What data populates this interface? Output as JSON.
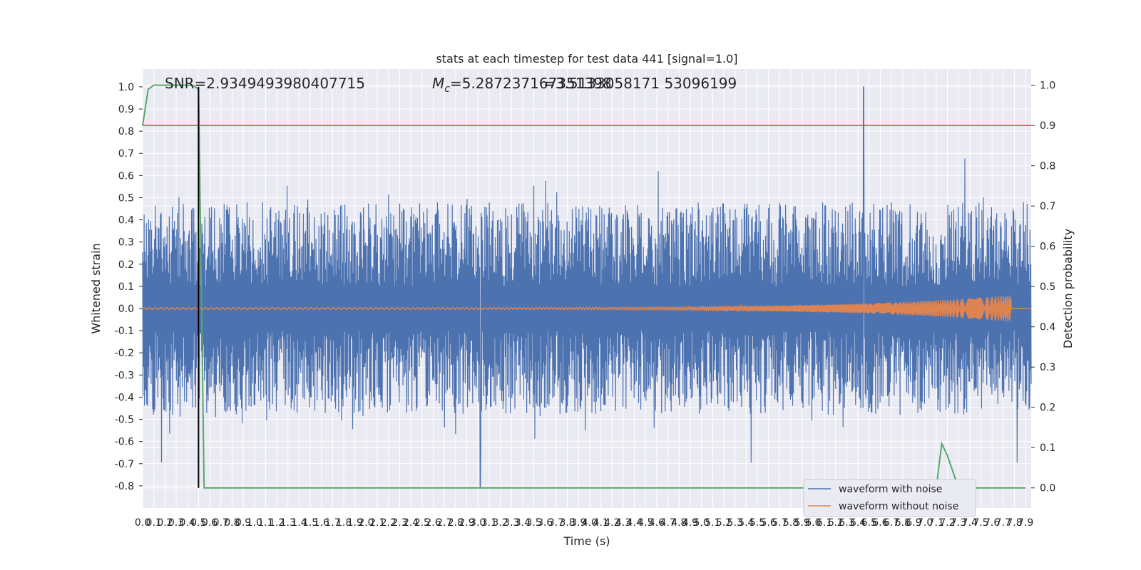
{
  "chart_data": {
    "type": "line",
    "title": "stats at each timestep for test data 441 [signal=1.0]",
    "xlabel": "Time (s)",
    "ylabel": "Whitened strain",
    "ylabel_right": "Detection probability",
    "xlim": [
      0.0,
      7.95
    ],
    "ylim": [
      -0.9,
      1.08
    ],
    "ylim_right": [
      -0.05,
      1.04
    ],
    "x_ticks": [
      "0.0",
      "0.1",
      "0.2",
      "0.3",
      "0.4",
      "0.5",
      "0.6",
      "0.7",
      "0.8",
      "0.9",
      "1.0",
      "1.1",
      "1.2",
      "1.3",
      "1.4",
      "1.5",
      "1.6",
      "1.7",
      "1.8",
      "1.9",
      "2.0",
      "2.1",
      "2.2",
      "2.3",
      "2.4",
      "2.5",
      "2.6",
      "2.7",
      "2.8",
      "2.9",
      "3.0",
      "3.1",
      "3.2",
      "3.3",
      "3.4",
      "3.5",
      "3.6",
      "3.7",
      "3.8",
      "3.9",
      "4.0",
      "4.1",
      "4.2",
      "4.3",
      "4.4",
      "4.5",
      "4.6",
      "4.7",
      "4.8",
      "4.9",
      "5.0",
      "5.1",
      "5.2",
      "5.3",
      "5.4",
      "5.5",
      "5.6",
      "5.7",
      "5.8",
      "5.9",
      "6.0",
      "6.1",
      "6.2",
      "6.3",
      "6.4",
      "6.5",
      "6.6",
      "6.7",
      "6.8",
      "6.9",
      "7.0",
      "7.1",
      "7.2",
      "7.3",
      "7.4",
      "7.5",
      "7.6",
      "7.7",
      "7.8",
      "7.9"
    ],
    "y_ticks": [
      "1.0",
      "0.9",
      "0.8",
      "0.7",
      "0.6",
      "0.5",
      "0.4",
      "0.3",
      "0.2",
      "0.1",
      "0.0",
      "-0.1",
      "-0.2",
      "-0.3",
      "-0.4",
      "-0.5",
      "-0.6",
      "-0.7",
      "-0.8"
    ],
    "y_ticks_right": [
      "1.0",
      "0.9",
      "0.8",
      "0.7",
      "0.6",
      "0.5",
      "0.4",
      "0.3",
      "0.2",
      "0.1",
      "0.0"
    ],
    "annotations": {
      "snr": "SNR=2.9349493980407715",
      "mc": "=5.287237167351398",
      "mc_symbol": "M",
      "mc_sub": "c",
      "q": "=3.5133058171 53096199"
    },
    "noise_envelope": {
      "positive_typical": [
        0.1,
        0.48
      ],
      "negative_typical": [
        -0.1,
        -0.48
      ],
      "peak": {
        "x": 6.45,
        "y": 1.0
      },
      "trough": {
        "x": 3.02,
        "y": -0.81
      }
    },
    "clean_waveform": {
      "start_amplitude": 0.004,
      "merger_x": 7.77,
      "merger_amplitude": 0.06
    },
    "detection_probability": {
      "x": [
        0.0,
        0.05,
        0.1,
        0.2,
        0.3,
        0.4,
        0.45,
        0.5,
        0.55,
        0.6,
        7.0,
        7.1,
        7.15,
        7.2,
        7.3,
        7.9
      ],
      "y": [
        0.9,
        0.99,
        1.0,
        1.0,
        1.0,
        1.0,
        1.0,
        0.99,
        0.0,
        0.0,
        0.0,
        0.0,
        0.11,
        0.08,
        0.0,
        0.0
      ]
    },
    "threshold": 0.9,
    "marker_x": 0.5,
    "series": [
      {
        "name": "waveform with noise",
        "color": "#4c72b0"
      },
      {
        "name": "waveform without noise",
        "color": "#dd8452"
      }
    ],
    "colors": {
      "probability": "#55a868",
      "threshold": "#c44e52",
      "marker": "#000000",
      "plot_bg": "#eaeaf2",
      "grid": "#ffffff"
    },
    "grid": true,
    "legend_position": "lower-right"
  }
}
